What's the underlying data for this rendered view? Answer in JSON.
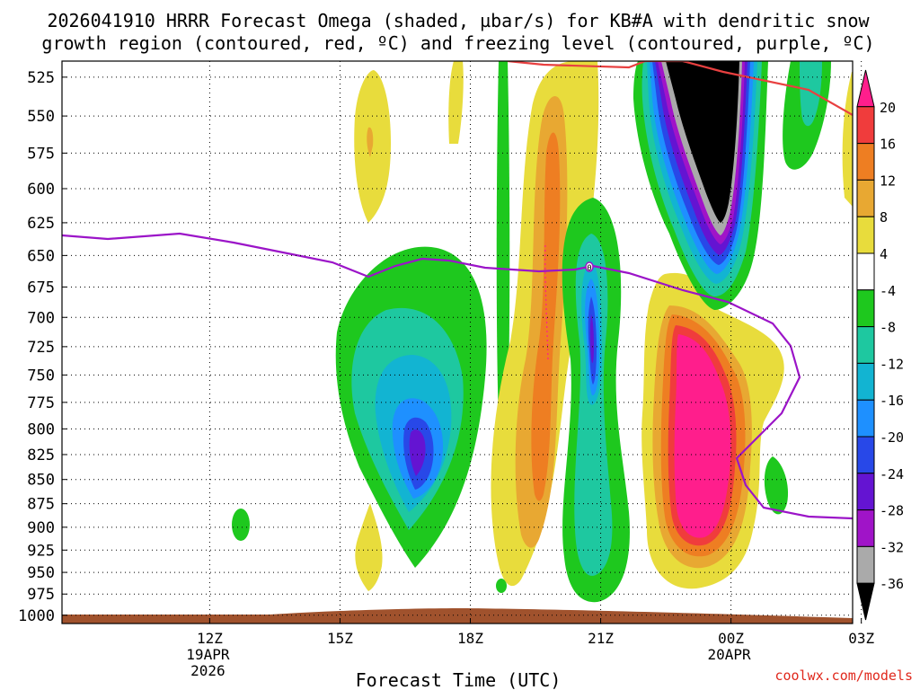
{
  "title_line1": "2026041910 HRRR Forecast Omega (shaded, µbar/s) for KB#A with dendritic snow",
  "title_line2": "growth region (contoured, red, ºC) and freezing level (contoured, purple, ºC)",
  "credit": "coolwx.com/models",
  "chart_data": {
    "type": "contour-time-height",
    "title": "2026041910 HRRR Forecast Omega (shaded, µbar/s) for KB#A with dendritic snow growth region (contoured, red, ºC) and freezing level (contoured, purple, ºC)",
    "xlabel": "Forecast Time (UTC)",
    "ylabel": "",
    "x_range_hours_after_12Z_19APR": [
      -3.4,
      14.8
    ],
    "y_range_hPa": [
      1010,
      515
    ],
    "y_ticks": [
      "525",
      "550",
      "575",
      "600",
      "625",
      "650",
      "675",
      "700",
      "725",
      "750",
      "775",
      "800",
      "825",
      "850",
      "875",
      "900",
      "925",
      "950",
      "975",
      "1000"
    ],
    "x_ticks": [
      {
        "label": "12Z",
        "sub1": "19APR",
        "sub2": "2026",
        "hour": 0
      },
      {
        "label": "15Z",
        "sub1": "",
        "sub2": "",
        "hour": 3
      },
      {
        "label": "18Z",
        "sub1": "",
        "sub2": "",
        "hour": 6
      },
      {
        "label": "21Z",
        "sub1": "",
        "sub2": "",
        "hour": 9
      },
      {
        "label": "00Z",
        "sub1": "20APR",
        "sub2": "",
        "hour": 12
      },
      {
        "label": "03Z",
        "sub1": "",
        "sub2": "",
        "hour": 15
      }
    ],
    "colorbar": {
      "labels": [
        "20",
        "16",
        "12",
        "8",
        "4",
        "-4",
        "-8",
        "-12",
        "-16",
        "-20",
        "-24",
        "-28",
        "-32",
        "-36"
      ],
      "colors": [
        "#ff1e8c",
        "#f03c3c",
        "#ee7e22",
        "#e8a832",
        "#e8dc3c",
        "#ffffff",
        "#1ec81e",
        "#1ec8a0",
        "#12b4d2",
        "#1e90ff",
        "#2848e8",
        "#6414d2",
        "#a014c8",
        "#aaaaaa",
        "#000000"
      ]
    },
    "freezing_level_color": "#9b14c8",
    "dgz_color": "#e84040",
    "terrain_color": "#a0522d",
    "freezing_level_label": "0"
  }
}
